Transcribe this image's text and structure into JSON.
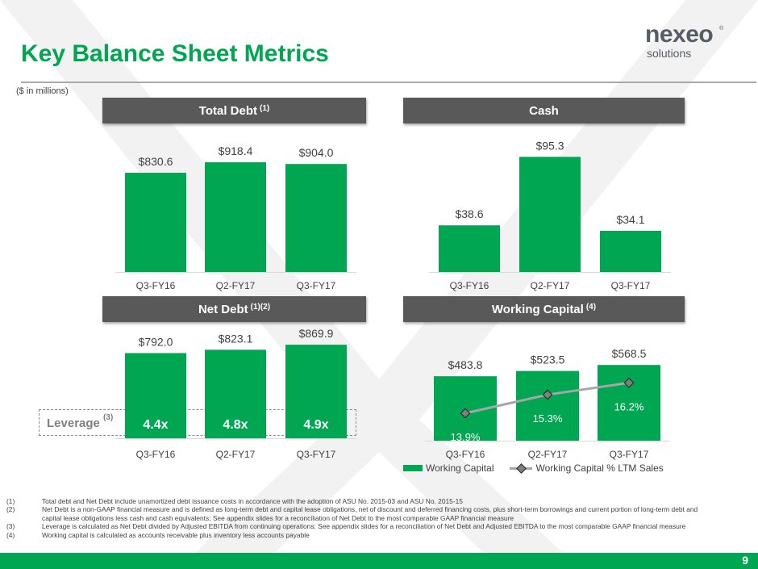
{
  "page": {
    "title": "Key Balance Sheet Metrics",
    "units_note": "($ in millions)",
    "page_number": "9",
    "logo_name": "nexeo",
    "logo_sub": "solutions",
    "logo_reg": "®",
    "colors": {
      "green": "#00a651",
      "header_gray": "#595959",
      "line_gray": "#a6a6a6"
    }
  },
  "chart_data": [
    {
      "type": "bar",
      "title": "Total Debt",
      "title_note": "(1)",
      "categories": [
        "Q3-FY16",
        "Q2-FY17",
        "Q3-FY17"
      ],
      "values": [
        830.6,
        918.4,
        904.0
      ],
      "value_labels": [
        "$830.6",
        "$918.4",
        "$904.0"
      ]
    },
    {
      "type": "bar",
      "title": "Cash",
      "title_note": "",
      "categories": [
        "Q3-FY16",
        "Q2-FY17",
        "Q3-FY17"
      ],
      "values": [
        38.6,
        95.3,
        34.1
      ],
      "value_labels": [
        "$38.6",
        "$95.3",
        "$34.1"
      ]
    },
    {
      "type": "bar",
      "title": "Net Debt",
      "title_note": "(1)(2)",
      "categories": [
        "Q3-FY16",
        "Q2-FY17",
        "Q3-FY17"
      ],
      "values": [
        792.0,
        823.1,
        869.9
      ],
      "value_labels": [
        "$792.0",
        "$823.1",
        "$869.9"
      ],
      "leverage_label": "Leverage",
      "leverage_note": "(3)",
      "leverage": [
        "4.4x",
        "4.8x",
        "4.9x"
      ]
    },
    {
      "type": "bar",
      "title": "Working Capital",
      "title_note": "(4)",
      "categories": [
        "Q3-FY16",
        "Q2-FY17",
        "Q3-FY17"
      ],
      "series": [
        {
          "name": "Working Capital",
          "values": [
            483.8,
            523.5,
            568.5
          ],
          "value_labels": [
            "$483.8",
            "$523.5",
            "$568.5"
          ]
        },
        {
          "name": "Working Capital % LTM Sales",
          "values": [
            13.9,
            15.3,
            16.2
          ],
          "value_labels": [
            "13.9%",
            "15.3%",
            "16.2%"
          ]
        }
      ]
    }
  ],
  "footnotes": [
    {
      "num": "(1)",
      "text": "Total debt and Net Debt include unamortized debt issuance costs in accordance with the adoption of ASU No. 2015-03 and ASU No. 2015-15"
    },
    {
      "num": "(2)",
      "text": "Net Debt is a non-GAAP financial measure and is defined as long-term debt and capital lease obligations, net of discount and deferred financing costs, plus short-term borrowings and current portion of long-term debt and capital lease obligations less cash and cash equivalents; See appendix slides for a reconciliation of Net Debt to the most comparable GAAP financial measure"
    },
    {
      "num": "(3)",
      "text": "Leverage is calculated as Net Debt divided by Adjusted EBITDA from continuing operations; See appendix slides for a reconciliation of Net Debt and Adjusted EBITDA to the most comparable GAAP financial measure"
    },
    {
      "num": "(4)",
      "text": "Working capital is calculated as accounts receivable plus inventory less accounts payable"
    }
  ]
}
